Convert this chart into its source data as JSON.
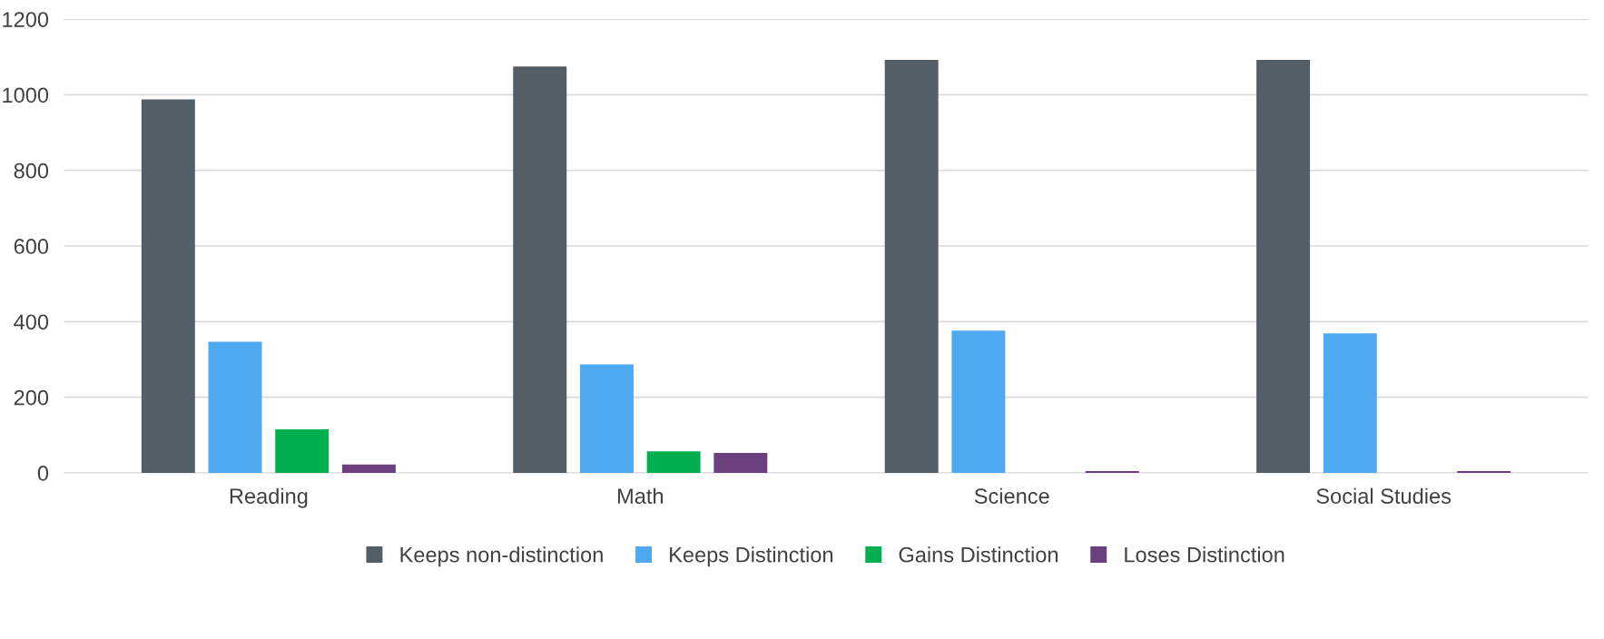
{
  "chart_data": {
    "type": "bar",
    "categories": [
      "Reading",
      "Math",
      "Science",
      "Social Studies"
    ],
    "series": [
      {
        "name": "Keeps non-distinction",
        "color": "#545e66",
        "values": [
          988,
          1075,
          1092,
          1092
        ]
      },
      {
        "name": "Keeps Distinction",
        "color": "#4fa9f0",
        "values": [
          347,
          287,
          376,
          369
        ]
      },
      {
        "name": "Gains Distinction",
        "color": "#00b050",
        "values": [
          115,
          57,
          0,
          0
        ]
      },
      {
        "name": "Loses Distinction",
        "color": "#6c3f7f",
        "values": [
          22,
          53,
          5,
          5
        ]
      }
    ],
    "ylim": [
      0,
      1200
    ],
    "yticks": [
      0,
      200,
      400,
      600,
      800,
      1000,
      1200
    ],
    "grid": "y",
    "legend": "bottom"
  }
}
